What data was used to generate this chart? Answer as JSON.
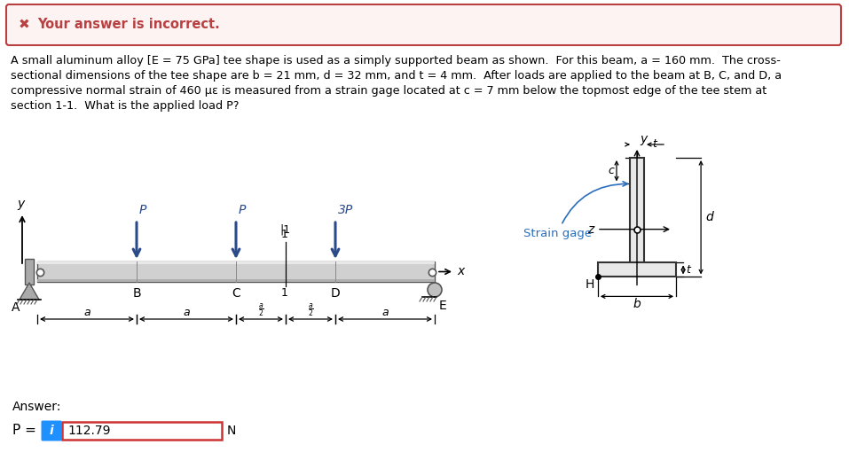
{
  "error_bg": "#fdf3f3",
  "error_border": "#b94040",
  "error_text_color": "#b94040",
  "text_color": "#000000",
  "arrow_color": "#2a4a8a",
  "beam_fill": "#d0d0d0",
  "beam_edge": "#555555",
  "tee_fill": "#e8e8e8",
  "tee_edge": "#333333",
  "support_fill": "#aaaaaa",
  "answer_label": "Answer:",
  "answer_p": "P =",
  "answer_value": "112.79",
  "answer_unit": "N",
  "i_box_color": "#1e90ff",
  "input_border": "#cc3333",
  "bg": "#ffffff",
  "problem_lines": [
    "A small aluminum alloy [E = 75 GPa] tee shape is used as a simply supported beam as shown.  For this beam, a = 160 mm.  The cross-",
    "sectional dimensions of the tee shape are b = 21 mm, d = 32 mm, and t = 4 mm.  After loads are applied to the beam at B, C, and D, a",
    "compressive normal strain of 460 με is measured from a strain gage located at c = 7 mm below the topmost edge of the tee stem at",
    "section 1-1.  What is the applied load P?"
  ]
}
